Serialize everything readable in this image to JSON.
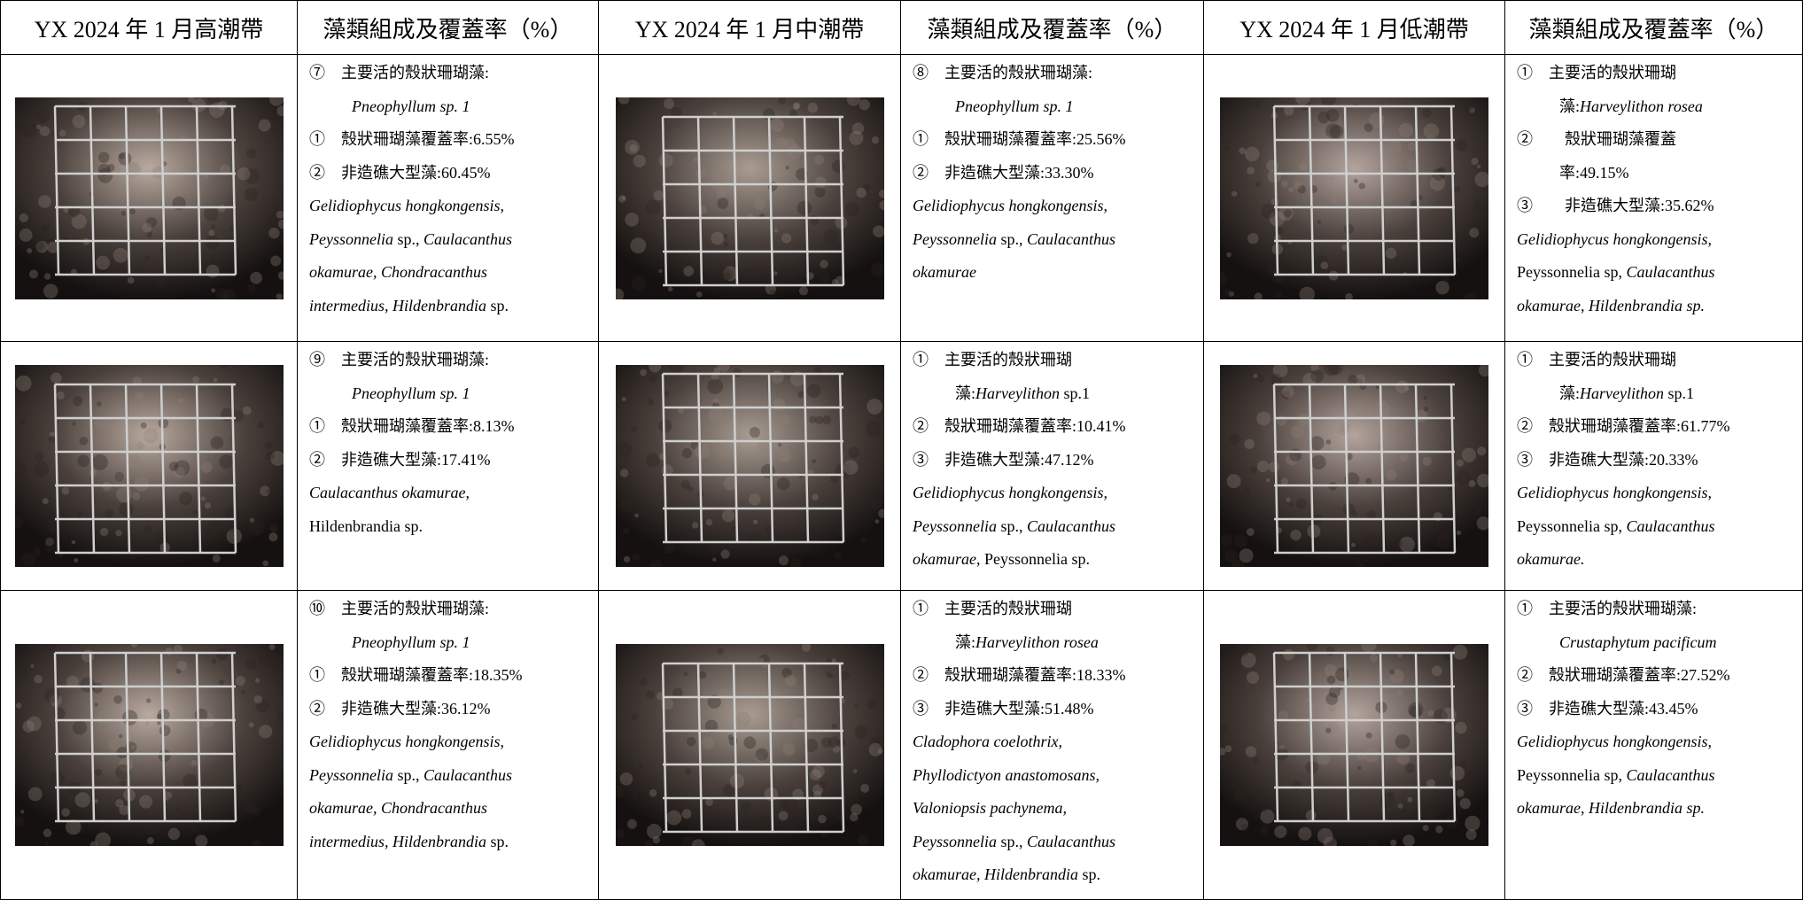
{
  "header": [
    "YX 2024 年 1 月高潮帶",
    "藻類組成及覆蓋率（%）",
    "YX 2024 年 1 月中潮帶",
    "藻類組成及覆蓋率（%）",
    "YX 2024 年 1 月低潮帶",
    "藻類組成及覆蓋率（%）"
  ],
  "rows": [
    [
      {
        "lines": [
          {
            "segments": [
              {
                "text": "⑦　主要活的殼狀珊瑚藻:"
              }
            ]
          },
          {
            "indent": true,
            "segments": [
              {
                "text": "Pneophyllum sp. 1",
                "italic": true
              }
            ]
          },
          {
            "segments": [
              {
                "text": "①　殼狀珊瑚藻覆蓋率:6.55%"
              }
            ]
          },
          {
            "segments": [
              {
                "text": "②　非造礁大型藻:60.45%"
              }
            ]
          },
          {
            "segments": [
              {
                "text": "Gelidiophycus hongkongensis,",
                "italic": true
              }
            ]
          },
          {
            "segments": [
              {
                "text": "Peyssonnelia",
                "italic": true
              },
              {
                "text": " sp., "
              },
              {
                "text": "Caulacanthus",
                "italic": true
              }
            ]
          },
          {
            "segments": [
              {
                "text": "okamurae, Chondracanthus",
                "italic": true
              }
            ]
          },
          {
            "segments": [
              {
                "text": "intermedius, Hildenbrandia",
                "italic": true
              },
              {
                "text": " sp."
              }
            ]
          }
        ]
      },
      {
        "lines": [
          {
            "segments": [
              {
                "text": "⑧　主要活的殼狀珊瑚藻:"
              }
            ]
          },
          {
            "indent": true,
            "segments": [
              {
                "text": "Pneophyllum sp. 1",
                "italic": true
              }
            ]
          },
          {
            "segments": [
              {
                "text": "①　殼狀珊瑚藻覆蓋率:25.56%"
              }
            ]
          },
          {
            "segments": [
              {
                "text": "②　非造礁大型藻:33.30%"
              }
            ]
          },
          {
            "segments": [
              {
                "text": "Gelidiophycus hongkongensis,",
                "italic": true
              }
            ]
          },
          {
            "segments": [
              {
                "text": "Peyssonnelia",
                "italic": true
              },
              {
                "text": " sp., "
              },
              {
                "text": "Caulacanthus",
                "italic": true
              }
            ]
          },
          {
            "segments": [
              {
                "text": "okamurae",
                "italic": true
              }
            ]
          }
        ]
      },
      {
        "lines": [
          {
            "segments": [
              {
                "text": "①　主要活的殼狀珊瑚"
              }
            ]
          },
          {
            "indent": true,
            "segments": [
              {
                "text": "藻:"
              },
              {
                "text": "Harveylithon rosea",
                "italic": true
              }
            ]
          },
          {
            "segments": [
              {
                "text": "②　　殼狀珊瑚藻覆蓋"
              }
            ]
          },
          {
            "indent": true,
            "segments": [
              {
                "text": "率:49.15%"
              }
            ]
          },
          {
            "segments": [
              {
                "text": "③　　非造礁大型藻:35.62%"
              }
            ]
          },
          {
            "segments": [
              {
                "text": "Gelidiophycus hongkongensis,",
                "italic": true
              }
            ]
          },
          {
            "segments": [
              {
                "text": "Peyssonnelia sp, "
              },
              {
                "text": "Caulacanthus",
                "italic": true
              }
            ]
          },
          {
            "segments": [
              {
                "text": "okamurae, Hildenbrandia sp.",
                "italic": true
              }
            ]
          }
        ]
      }
    ],
    [
      {
        "lines": [
          {
            "segments": [
              {
                "text": "⑨　主要活的殼狀珊瑚藻:"
              }
            ]
          },
          {
            "indent": true,
            "segments": [
              {
                "text": "Pneophyllum sp. 1",
                "italic": true
              }
            ]
          },
          {
            "segments": [
              {
                "text": "①　殼狀珊瑚藻覆蓋率:8.13%"
              }
            ]
          },
          {
            "segments": [
              {
                "text": "②　非造礁大型藻:17.41%"
              }
            ]
          },
          {
            "segments": [
              {
                "text": "Caulacanthus okamurae",
                "italic": true
              },
              {
                "text": ","
              }
            ]
          },
          {
            "segments": [
              {
                "text": "Hildenbrandia sp."
              }
            ]
          }
        ]
      },
      {
        "lines": [
          {
            "segments": [
              {
                "text": "①　主要活的殼狀珊瑚"
              }
            ]
          },
          {
            "indent": true,
            "segments": [
              {
                "text": "藻:"
              },
              {
                "text": "Harveylithon",
                "italic": true
              },
              {
                "text": " sp.1"
              }
            ]
          },
          {
            "segments": [
              {
                "text": "②　殼狀珊瑚藻覆蓋率:10.41%"
              }
            ]
          },
          {
            "segments": [
              {
                "text": "③　非造礁大型藻:47.12%"
              }
            ]
          },
          {
            "segments": [
              {
                "text": "Gelidiophycus hongkongensis,",
                "italic": true
              }
            ]
          },
          {
            "segments": [
              {
                "text": "Peyssonnelia",
                "italic": true
              },
              {
                "text": " sp., "
              },
              {
                "text": "Caulacanthus",
                "italic": true
              }
            ]
          },
          {
            "segments": [
              {
                "text": "okamurae",
                "italic": true
              },
              {
                "text": ", Peyssonnelia sp."
              }
            ]
          }
        ]
      },
      {
        "lines": [
          {
            "segments": [
              {
                "text": "①　主要活的殼狀珊瑚"
              }
            ]
          },
          {
            "indent": true,
            "segments": [
              {
                "text": "藻:"
              },
              {
                "text": "Harveylithon",
                "italic": true
              },
              {
                "text": " sp.1"
              }
            ]
          },
          {
            "segments": [
              {
                "text": "②　殼狀珊瑚藻覆蓋率:61.77%"
              }
            ]
          },
          {
            "segments": [
              {
                "text": "③　非造礁大型藻:20.33%"
              }
            ]
          },
          {
            "segments": [
              {
                "text": "Gelidiophycus hongkongensis,",
                "italic": true
              }
            ]
          },
          {
            "segments": [
              {
                "text": "Peyssonnelia sp, "
              },
              {
                "text": "Caulacanthus",
                "italic": true
              }
            ]
          },
          {
            "segments": [
              {
                "text": "okamurae.",
                "italic": true
              }
            ]
          }
        ]
      }
    ],
    [
      {
        "lines": [
          {
            "segments": [
              {
                "text": "⑩　主要活的殼狀珊瑚藻:"
              }
            ]
          },
          {
            "indent": true,
            "segments": [
              {
                "text": "Pneophyllum sp. 1",
                "italic": true
              }
            ]
          },
          {
            "segments": [
              {
                "text": "①　殼狀珊瑚藻覆蓋率:18.35%"
              }
            ]
          },
          {
            "segments": [
              {
                "text": "②　非造礁大型藻:36.12%"
              }
            ]
          },
          {
            "segments": [
              {
                "text": "Gelidiophycus hongkongensis,",
                "italic": true
              }
            ]
          },
          {
            "segments": [
              {
                "text": "Peyssonnelia",
                "italic": true
              },
              {
                "text": " sp., "
              },
              {
                "text": "Caulacanthus",
                "italic": true
              }
            ]
          },
          {
            "segments": [
              {
                "text": "okamurae, Chondracanthus",
                "italic": true
              }
            ]
          },
          {
            "segments": [
              {
                "text": "intermedius, Hildenbrandia",
                "italic": true
              },
              {
                "text": " sp."
              }
            ]
          }
        ]
      },
      {
        "lines": [
          {
            "segments": [
              {
                "text": "①　主要活的殼狀珊瑚"
              }
            ]
          },
          {
            "indent": true,
            "segments": [
              {
                "text": "藻:"
              },
              {
                "text": "Harveylithon rosea",
                "italic": true
              }
            ]
          },
          {
            "segments": [
              {
                "text": "②　殼狀珊瑚藻覆蓋率:18.33%"
              }
            ]
          },
          {
            "segments": [
              {
                "text": "③　非造礁大型藻:51.48%"
              }
            ]
          },
          {
            "segments": [
              {
                "text": "Cladophora coelothrix,",
                "italic": true
              }
            ]
          },
          {
            "segments": [
              {
                "text": "Phyllodictyon anastomosans,",
                "italic": true
              }
            ]
          },
          {
            "segments": [
              {
                "text": "Valoniopsis pachynema,",
                "italic": true
              }
            ]
          },
          {
            "segments": [
              {
                "text": "Peyssonnelia",
                "italic": true
              },
              {
                "text": " sp., "
              },
              {
                "text": "Caulacanthus",
                "italic": true
              }
            ]
          },
          {
            "segments": [
              {
                "text": "okamurae, Hildenbrandia",
                "italic": true
              },
              {
                "text": " sp."
              }
            ]
          }
        ]
      },
      {
        "lines": [
          {
            "segments": [
              {
                "text": "①　主要活的殼狀珊瑚藻:"
              }
            ]
          },
          {
            "indent": true,
            "segments": [
              {
                "text": "Crustaphytum pacificum",
                "italic": true
              }
            ]
          },
          {
            "segments": [
              {
                "text": "②　殼狀珊瑚藻覆蓋率:27.52%"
              }
            ]
          },
          {
            "segments": [
              {
                "text": "③　非造礁大型藻:43.45%"
              }
            ]
          },
          {
            "segments": [
              {
                "text": "Gelidiophycus hongkongensis,",
                "italic": true
              }
            ]
          },
          {
            "segments": [
              {
                "text": "Peyssonnelia sp, "
              },
              {
                "text": "Caulacanthus",
                "italic": true
              }
            ]
          },
          {
            "segments": [
              {
                "text": "okamurae, Hildenbrandia sp.",
                "italic": true
              }
            ]
          }
        ]
      }
    ]
  ]
}
